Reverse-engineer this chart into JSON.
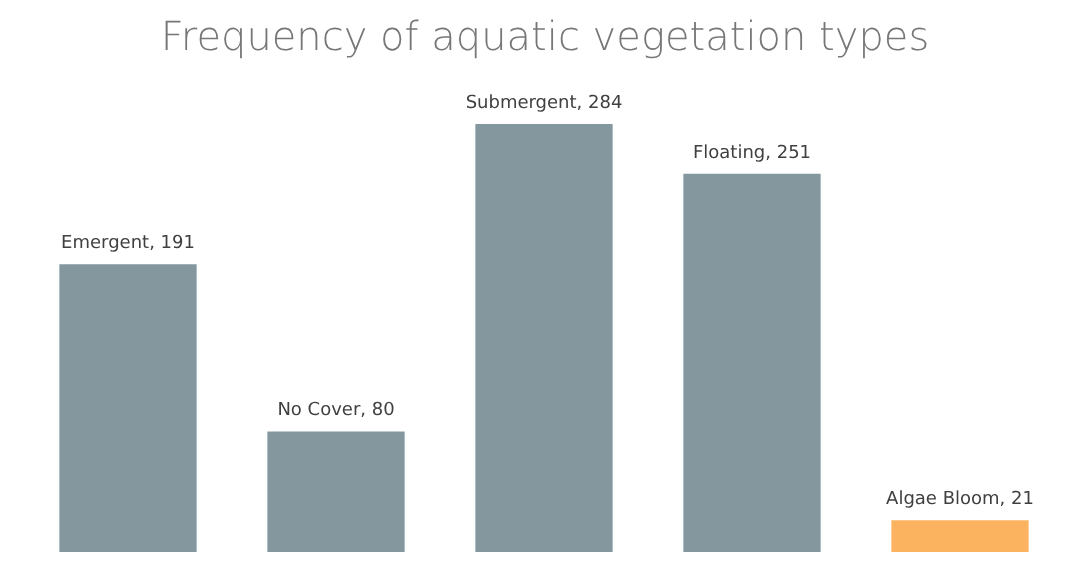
{
  "chart_data": {
    "type": "bar",
    "title": "Frequency of aquatic vegetation types",
    "categories": [
      null,
      null,
      null,
      null,
      null
    ],
    "values": [
      191,
      80,
      284,
      251,
      21
    ],
    "colors": [
      "#84979f",
      "#84979f",
      "#84979f",
      "#84979f",
      "#fbb360"
    ],
    "value_labels": [
      "Emergent, 191",
      "No Cover, 80",
      "Submergent, 284",
      "Floating, 251",
      "Algae Bloom, 21"
    ],
    "tick_labels": false,
    "grid": false,
    "legend": false
  }
}
